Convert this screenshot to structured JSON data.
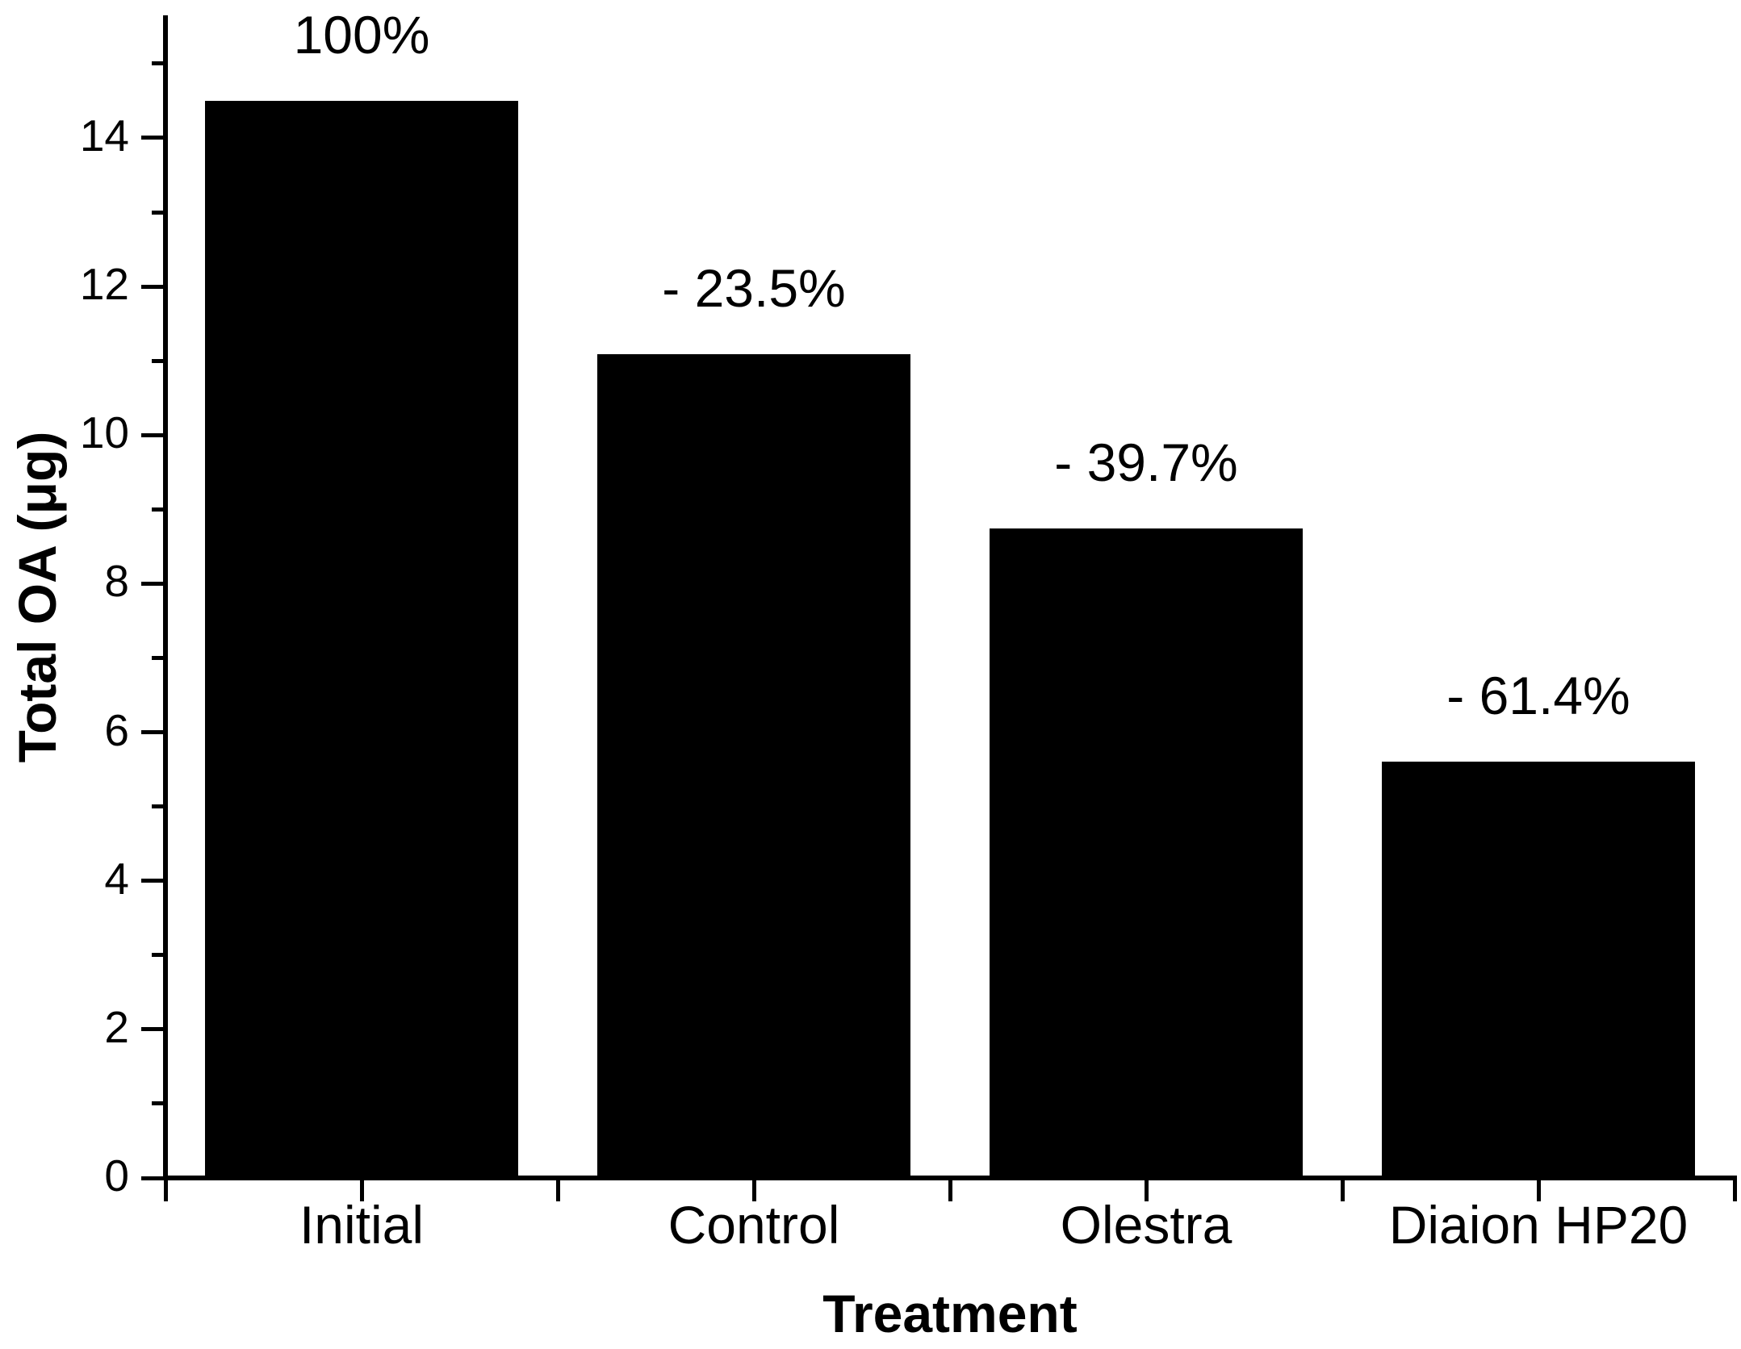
{
  "chart_data": {
    "type": "bar",
    "title": "",
    "xlabel": "Treatment",
    "ylabel": "Total OA (μg)",
    "categories": [
      "Initial",
      "Control",
      "Olestra",
      "Diaion HP20"
    ],
    "values": [
      14.5,
      11.09,
      8.74,
      5.6
    ],
    "bar_labels": [
      "100%",
      "- 23.5%",
      "- 39.7%",
      "- 61.4%"
    ],
    "ylim": [
      0,
      15.65
    ],
    "yticks_major": [
      0,
      2,
      4,
      6,
      8,
      10,
      12,
      14
    ],
    "yticks_minor": [
      1,
      3,
      5,
      7,
      9,
      11,
      13,
      15
    ],
    "bar_color": "#000000",
    "axis_color": "#000000",
    "background_color": "#ffffff",
    "grid": false,
    "legend": null
  }
}
